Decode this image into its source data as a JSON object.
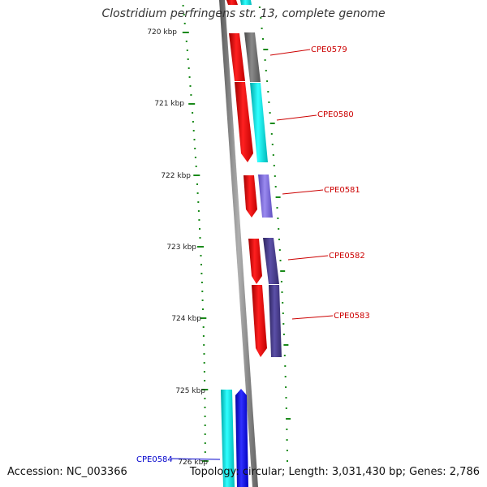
{
  "title": "Clostridium perfringens str. 13, complete genome",
  "footer": {
    "accession": "Accession: NC_003366",
    "info": "Topology: circular; Length: 3,031,430 bp; Genes: 2,786"
  },
  "scale_labels": [
    "720 kbp",
    "721 kbp",
    "722 kbp",
    "723 kbp",
    "724 kbp",
    "725 kbp",
    "726 kbp"
  ],
  "gene_labels": [
    "CPE0579",
    "CPE0580",
    "CPE0581",
    "CPE0582",
    "CPE0583",
    "CPE0584"
  ],
  "colors": {
    "tick": "#1a8a1a",
    "label_red": "#cc0000",
    "label_blue": "#0000cc",
    "strand_red": "#ff0000",
    "cyan": "#00e5e5",
    "gray": "#6e6e6e",
    "lavender": "#7f6fd8",
    "slate": "#4a3f8c",
    "blue": "#0000ff",
    "backbone": "#7a7a7a"
  }
}
